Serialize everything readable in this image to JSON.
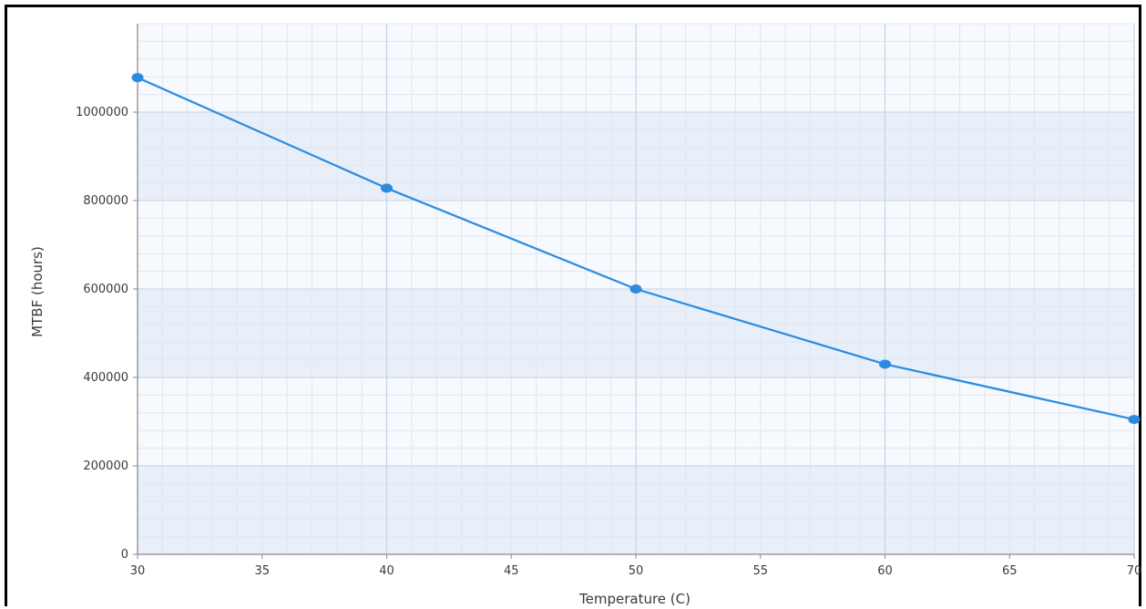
{
  "chart_data": {
    "type": "line",
    "title": "",
    "xlabel": "Temperature (C)",
    "ylabel": "MTBF (hours)",
    "xlim": [
      30,
      70
    ],
    "ylim": [
      0,
      1200000
    ],
    "x_ticks": [
      30,
      35,
      40,
      45,
      50,
      55,
      60,
      65,
      70
    ],
    "y_ticks": [
      0,
      200000,
      400000,
      600000,
      800000,
      1000000
    ],
    "x_tick_labels": [
      "30",
      "35",
      "40",
      "45",
      "50",
      "55",
      "60",
      "65",
      "70"
    ],
    "y_tick_labels": [
      "0",
      "200000",
      "400000",
      "600000",
      "800000",
      "1000000"
    ],
    "grid": true,
    "series": [
      {
        "color": "#2a8be0",
        "x": [
          30,
          40,
          50,
          60,
          70
        ],
        "y": [
          1078000,
          828000,
          600000,
          430000,
          305000
        ]
      }
    ],
    "colors": {
      "plot_background": "#f6f9fd",
      "band": "#e9eff9",
      "grid_major": "#c9d3df",
      "grid_minor": "#e1e7ef",
      "axis": "#8a8a8a",
      "line": "#2a8be0"
    }
  }
}
